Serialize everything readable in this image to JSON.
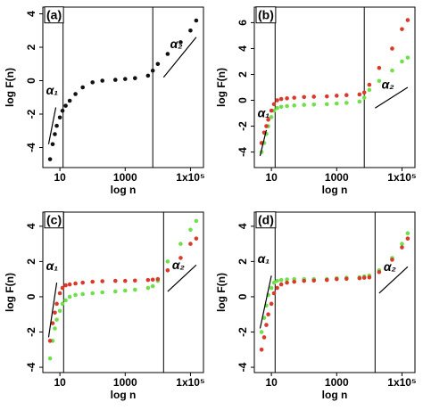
{
  "chart_data": [
    {
      "type": "scatter",
      "panel_label": "(a)",
      "xlabel": "log n",
      "ylabel": "log F(n)",
      "log_x": true,
      "xlim": [
        3,
        250000
      ],
      "ylim": [
        -5.2,
        4.4
      ],
      "xticks": [
        10,
        1000,
        {
          "value": 100000,
          "label": "1x10⁵"
        }
      ],
      "yticks": [
        -4,
        -2,
        0,
        2,
        4
      ],
      "x": [
        5,
        6,
        7,
        8,
        10,
        12,
        15,
        20,
        30,
        50,
        100,
        200,
        500,
        1000,
        2000,
        5000,
        7000,
        10000,
        20000,
        50000,
        100000,
        150000
      ],
      "series": [
        {
          "color": "#111111",
          "values": [
            -4.7,
            -3.8,
            -3.2,
            -2.7,
            -2.2,
            -1.8,
            -1.5,
            -1.2,
            -0.8,
            -0.4,
            -0.1,
            0,
            0.05,
            0.1,
            0.15,
            0.3,
            0.6,
            1.0,
            1.6,
            2.3,
            3.0,
            3.6
          ]
        }
      ],
      "vlines": [
        12.5,
        7000
      ],
      "ref_lines": [
        {
          "x": [
            4.5,
            7.5
          ],
          "y": [
            -3.8,
            -1.6
          ]
        },
        {
          "x": [
            15000,
            150000
          ],
          "y": [
            0.2,
            2.6
          ]
        }
      ],
      "annotations": [
        "α₁",
        "α₂"
      ]
    },
    {
      "type": "scatter",
      "panel_label": "(b)",
      "xlabel": "log n",
      "ylabel": "log F(n)",
      "log_x": true,
      "xlim": [
        3,
        250000
      ],
      "ylim": [
        -5.2,
        7.2
      ],
      "xticks": [
        10,
        1000,
        {
          "value": 100000,
          "label": "1x10⁵"
        }
      ],
      "yticks": [
        -4,
        -2,
        0,
        2,
        4,
        6
      ],
      "x": [
        5,
        6,
        7,
        8,
        10,
        12,
        15,
        20,
        30,
        50,
        100,
        200,
        500,
        1000,
        2000,
        5000,
        7000,
        10000,
        20000,
        50000,
        100000,
        150000
      ],
      "series": [
        {
          "color": "#6ee04a",
          "values": [
            -4,
            -3.3,
            -2.6,
            -2,
            -1.3,
            -0.8,
            -0.6,
            -0.5,
            -0.45,
            -0.4,
            -0.35,
            -0.33,
            -0.3,
            -0.25,
            -0.2,
            -0.1,
            0.2,
            0.8,
            1.5,
            2.3,
            3.0,
            3.3
          ]
        },
        {
          "color": "#d93a2b",
          "values": [
            -3.3,
            -2.5,
            -2,
            -1.5,
            -0.8,
            -0.3,
            0,
            0.1,
            0.15,
            0.2,
            0.25,
            0.28,
            0.3,
            0.35,
            0.4,
            0.45,
            0.6,
            1.2,
            2.5,
            4.0,
            5.5,
            6.2
          ]
        }
      ],
      "vlines": [
        13,
        7000
      ],
      "ref_lines": [
        {
          "x": [
            4.5,
            7
          ],
          "y": [
            -4.3,
            -2.3
          ]
        },
        {
          "x": [
            15000,
            150000
          ],
          "y": [
            -0.6,
            1.0
          ]
        }
      ],
      "annotations": [
        "α₁",
        "α₂"
      ]
    },
    {
      "type": "scatter",
      "panel_label": "(c)",
      "xlabel": "log n",
      "ylabel": "log F(n)",
      "log_x": true,
      "xlim": [
        3,
        250000
      ],
      "ylim": [
        -4.3,
        4.8
      ],
      "xticks": [
        10,
        1000,
        {
          "value": 100000,
          "label": "1x10⁵"
        }
      ],
      "yticks": [
        -4,
        -2,
        0,
        2,
        4
      ],
      "x": [
        5,
        6,
        7,
        8,
        10,
        12,
        15,
        20,
        30,
        50,
        100,
        200,
        500,
        1000,
        2000,
        5000,
        7000,
        10000,
        20000,
        50000,
        100000,
        150000
      ],
      "series": [
        {
          "color": "#6ee04a",
          "values": [
            -3.5,
            -2.5,
            -1.8,
            -1.3,
            -0.8,
            -0.4,
            -0.2,
            0,
            0.1,
            0.15,
            0.2,
            0.25,
            0.3,
            0.35,
            0.4,
            0.5,
            0.6,
            0.9,
            2.0,
            3.0,
            3.8,
            4.3
          ]
        },
        {
          "color": "#d93a2b",
          "values": [
            -2.5,
            -1.5,
            -0.9,
            -0.4,
            0.2,
            0.5,
            0.65,
            0.7,
            0.75,
            0.8,
            0.85,
            0.88,
            0.9,
            0.9,
            0.92,
            0.95,
            0.97,
            1.0,
            1.5,
            2.2,
            3.0,
            3.3
          ]
        }
      ],
      "vlines": [
        13,
        15000
      ],
      "ref_lines": [
        {
          "x": [
            4.5,
            8
          ],
          "y": [
            -2.3,
            0.8
          ]
        },
        {
          "x": [
            20000,
            150000
          ],
          "y": [
            0.3,
            1.8
          ]
        }
      ],
      "annotations": [
        "α₁",
        "α₂"
      ]
    },
    {
      "type": "scatter",
      "panel_label": "(d)",
      "xlabel": "log n",
      "ylabel": "log F(n)",
      "log_x": true,
      "xlim": [
        3,
        250000
      ],
      "ylim": [
        -4.3,
        4.8
      ],
      "xticks": [
        10,
        1000,
        {
          "value": 100000,
          "label": "1x10⁵"
        }
      ],
      "yticks": [
        -4,
        -2,
        0,
        2,
        4
      ],
      "x": [
        5,
        6,
        7,
        8,
        10,
        12,
        15,
        20,
        30,
        50,
        100,
        200,
        500,
        1000,
        2000,
        5000,
        7000,
        10000,
        20000,
        50000,
        100000,
        150000
      ],
      "series": [
        {
          "color": "#6ee04a",
          "values": [
            -2,
            -1.2,
            -0.5,
            0.1,
            0.5,
            0.8,
            0.9,
            0.95,
            0.98,
            1,
            1,
            1,
            1,
            1.05,
            1.08,
            1.1,
            1.15,
            1.2,
            1.5,
            2.2,
            3,
            3.6
          ]
        },
        {
          "color": "#d93a2b",
          "values": [
            -3,
            -2.3,
            -1.6,
            -1,
            -0.4,
            0.2,
            0.5,
            0.7,
            0.8,
            0.85,
            0.9,
            0.92,
            0.95,
            1,
            1.02,
            1.05,
            1.08,
            1.1,
            1.4,
            2.1,
            2.8,
            3.3
          ]
        }
      ],
      "vlines": [
        13,
        15000
      ],
      "ref_lines": [
        {
          "x": [
            4.5,
            10
          ],
          "y": [
            -1.8,
            1.2
          ]
        },
        {
          "x": [
            20000,
            150000
          ],
          "y": [
            0.2,
            1.7
          ]
        }
      ],
      "annotations": [
        "α₁",
        "α₂"
      ]
    }
  ]
}
